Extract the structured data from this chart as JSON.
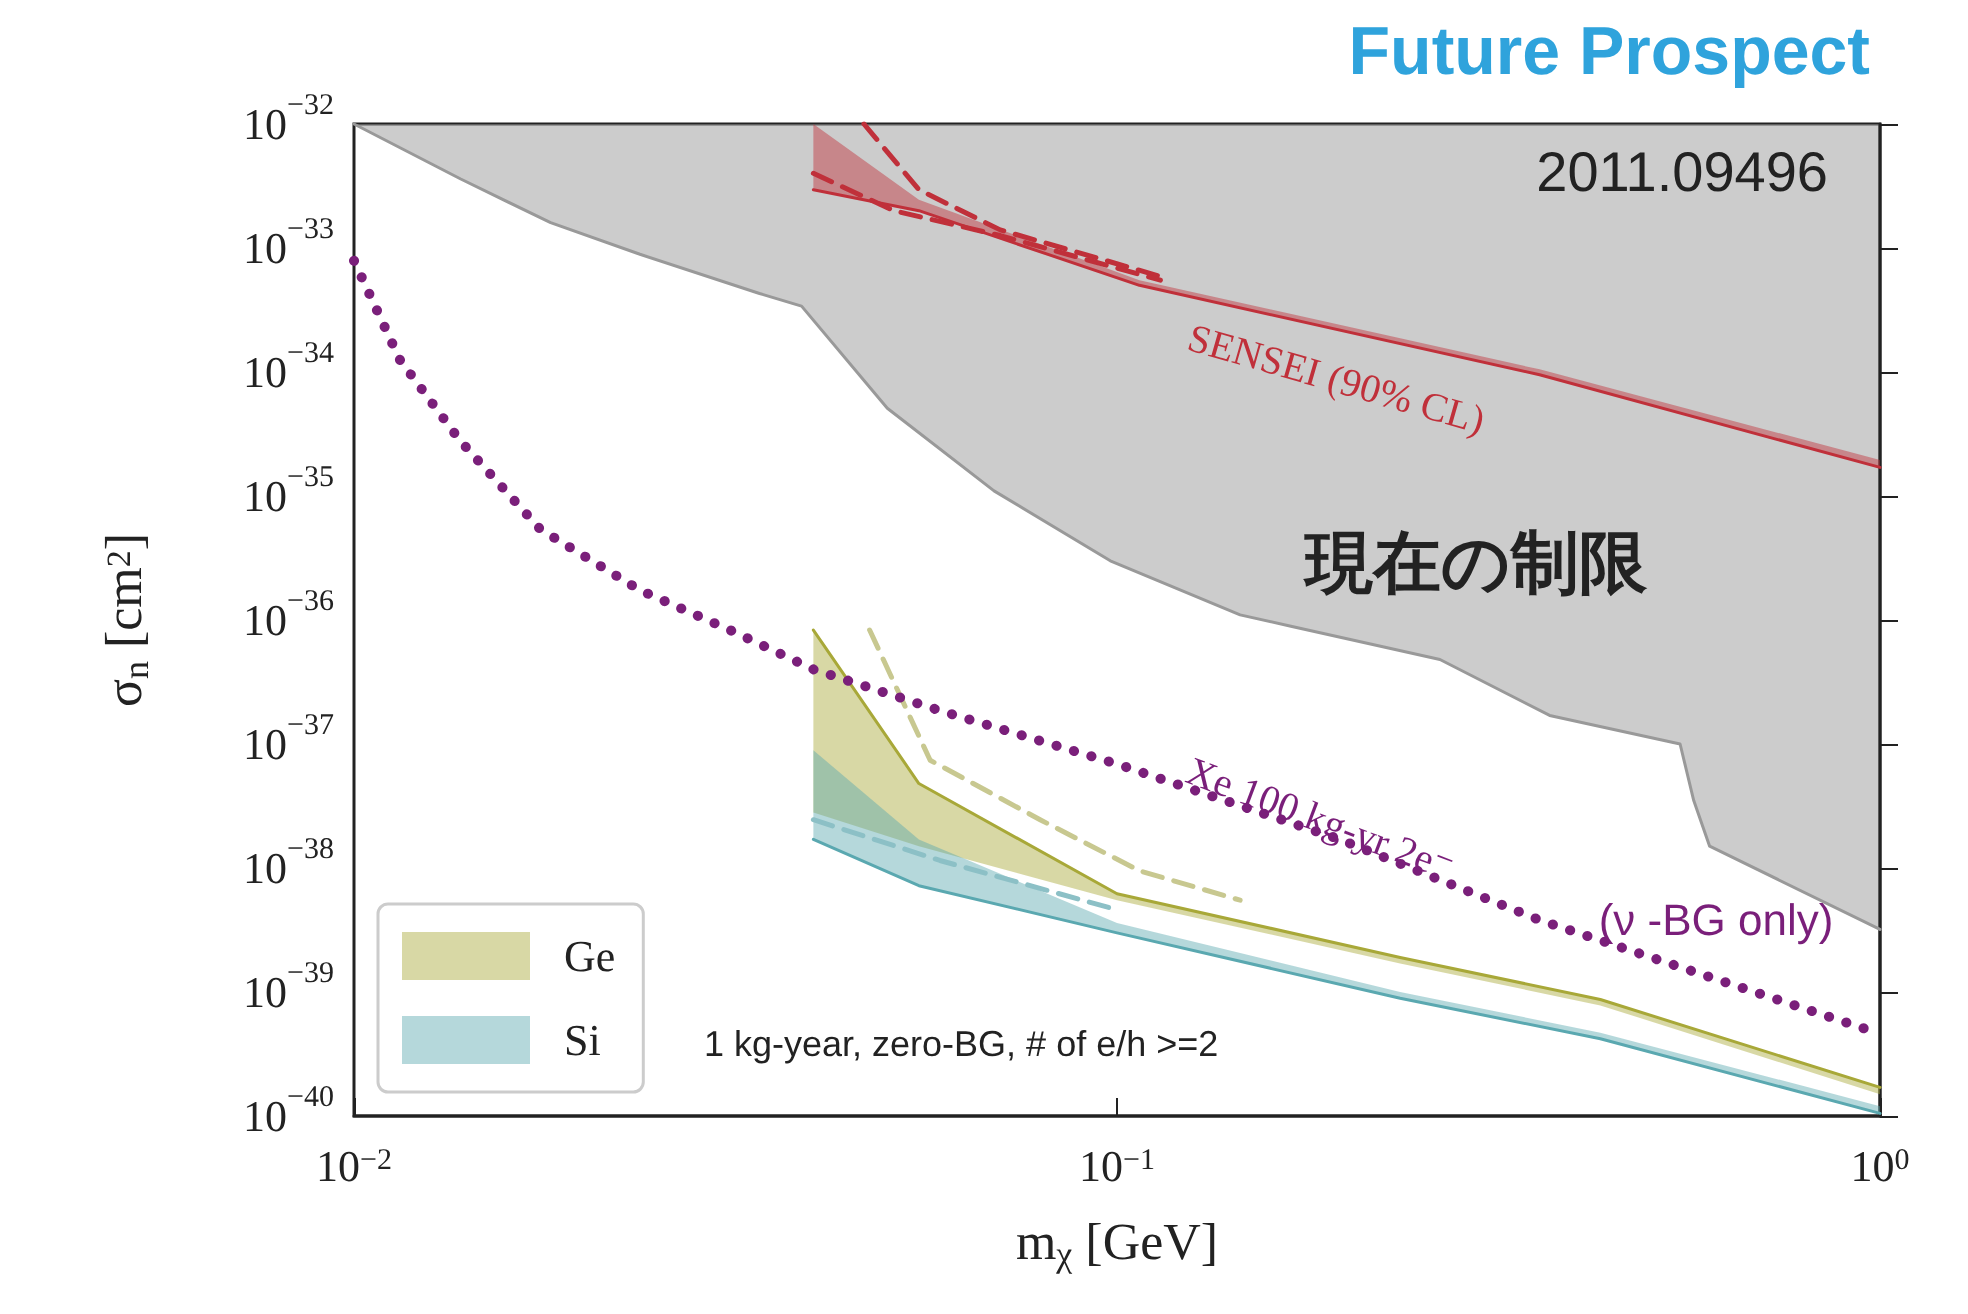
{
  "chart_data": {
    "type": "line",
    "title": "Future Prospect",
    "xlabel": "m$_{χ}$ [GeV]",
    "ylabel": "σ$_{n}$ [cm$^{2}$]",
    "log": "xy",
    "xlim": [
      0.01,
      1
    ],
    "ylim": [
      1e-40,
      1e-32
    ],
    "xticks": [
      {
        "value": 0.01,
        "label": "10$^{−2}$"
      },
      {
        "value": 0.1,
        "label": "10$^{−1}$"
      },
      {
        "value": 1,
        "label": "10$^{0}$"
      }
    ],
    "yticks": [
      {
        "value": 1e-40,
        "label": "10$^{−40}$"
      },
      {
        "value": 1e-39,
        "label": "10$^{−39}$"
      },
      {
        "value": 1e-38,
        "label": "10$^{−38}$"
      },
      {
        "value": 1e-37,
        "label": "10$^{−37}$"
      },
      {
        "value": 1e-36,
        "label": "10$^{−36}$"
      },
      {
        "value": 1e-35,
        "label": "10$^{−35}$"
      },
      {
        "value": 1e-34,
        "label": "10$^{−34}$"
      },
      {
        "value": 1e-33,
        "label": "10$^{−33}$"
      },
      {
        "value": 1e-32,
        "label": "10$^{−32}$"
      }
    ],
    "marker": "none",
    "legend": "bottom left",
    "series": [
      {
        "color": "#999999",
        "x": [
          0.01,
          0.0138,
          0.0181,
          0.0237,
          0.034,
          0.0386,
          0.05,
          0.069,
          0.098,
          0.145,
          0.169,
          0.265,
          0.369,
          0.547,
          0.57,
          0.598,
          1
        ],
        "values": [
          1e-32,
          3.6e-33,
          1.6e-33,
          8.9e-34,
          4.3e-34,
          3.4e-34,
          5.1e-35,
          1.1e-35,
          3e-36,
          1.1e-36,
          8.9e-37,
          4.8e-37,
          1.7e-37,
          1e-37,
          3.5e-38,
          1.5e-38,
          3.2e-39
        ],
        "lower": [
          1e-32,
          3.6e-33,
          1.6e-33,
          8.9e-34,
          4.3e-34,
          3.4e-34,
          5.1e-35,
          1.1e-35,
          3e-36,
          1.1e-36,
          8.9e-37,
          4.8e-37,
          1.7e-37,
          1e-37,
          3.5e-38,
          1.5e-38,
          3.2e-39
        ],
        "upper": [
          1e-32,
          1e-32,
          1e-32,
          1e-32,
          1e-32,
          1e-32,
          1e-32,
          1e-32,
          1e-32,
          1e-32,
          1e-32,
          1e-32,
          1e-32,
          1e-32,
          1e-32,
          1e-32,
          1e-32
        ]
      },
      {
        "color": "#c0303a",
        "x": [
          0.04,
          0.055,
          0.107,
          0.358,
          1
        ],
        "values": [
          2.95e-33,
          2e-33,
          5e-34,
          9.5e-35,
          1.7e-35
        ],
        "lower": [
          2.95e-33,
          2e-33,
          5e-34,
          9.5e-35,
          1.7e-35
        ],
        "upper": [
          1e-32,
          2.45e-33,
          5.5e-34,
          1.05e-34,
          1.95e-35
        ]
      },
      {
        "color": "#c0303a",
        "line_style": "dashed",
        "x": [
          0.0466,
          0.055,
          0.0703,
          0.114
        ],
        "values": [
          1e-32,
          2.95e-33,
          1.4e-33,
          5.9e-34
        ]
      },
      {
        "color": "#c0303a",
        "line_style": "dashed",
        "x": [
          0.04,
          0.051,
          0.0703,
          0.114
        ],
        "values": [
          4e-33,
          2e-33,
          1.26e-33,
          5.5e-34
        ]
      },
      {
        "name": "Ge",
        "color": "#a8a838",
        "x": [
          0.04,
          0.055,
          0.1,
          0.235,
          0.43,
          1
        ],
        "values": [
          8.3e-37,
          4.8e-38,
          6.2e-39,
          1.9e-39,
          8.7e-40,
          1.7e-40
        ],
        "lower": [
          2.8e-38,
          1.5e-38,
          5.5e-39,
          1.7e-39,
          7.8e-40,
          1.5e-40
        ],
        "upper": [
          8.3e-37,
          4.8e-38,
          6.2e-39,
          1.9e-39,
          8.7e-40,
          1.7e-40
        ]
      },
      {
        "color": "#c8c890",
        "line_style": "dashed",
        "x": [
          0.0474,
          0.0569,
          0.0793,
          0.107,
          0.145
        ],
        "values": [
          8.3e-37,
          7.4e-38,
          2.45e-38,
          9.5e-39,
          5.5e-39
        ]
      },
      {
        "name": "Si",
        "color": "#5aa8b0",
        "x": [
          0.04,
          0.055,
          0.1,
          0.235,
          0.43,
          1
        ],
        "values": [
          1.7e-38,
          7.2e-39,
          3e-39,
          8.9e-40,
          4.2e-40,
          1.05e-40
        ],
        "lower": [
          1.7e-38,
          7.2e-39,
          3e-39,
          8.9e-40,
          4.2e-40,
          1.05e-40
        ],
        "upper": [
          8.9e-38,
          1.7e-38,
          3.6e-39,
          1e-39,
          4.7e-40,
          1.2e-40
        ]
      },
      {
        "color": "#8cc0c6",
        "line_style": "dashed",
        "x": [
          0.04,
          0.0586,
          0.1
        ],
        "values": [
          2.45e-38,
          1.15e-38,
          4.6e-39
        ]
      },
      {
        "color": "#7a1f7a",
        "line_style": "dotted",
        "x": [
          0.01,
          0.01148,
          0.01377,
          0.01754,
          0.0237,
          0.0311,
          0.04,
          0.0586,
          0.1,
          0.196,
          0.358,
          1
        ],
        "values": [
          7.9e-34,
          1.26e-34,
          2.8e-35,
          5.4e-36,
          1.74e-36,
          8.3e-37,
          4e-37,
          1.86e-37,
          6.9e-38,
          1.7e-38,
          3.8e-39,
          4.6e-40
        ]
      }
    ],
    "annotations": [
      "SENSEI (90% CL)",
      "Xe 100 kg-yr 2e⁻",
      "(ν -BG only)",
      "現在の制限",
      "2011.09496",
      "1 kg-year, zero-BG, # of e/h >=2"
    ]
  }
}
